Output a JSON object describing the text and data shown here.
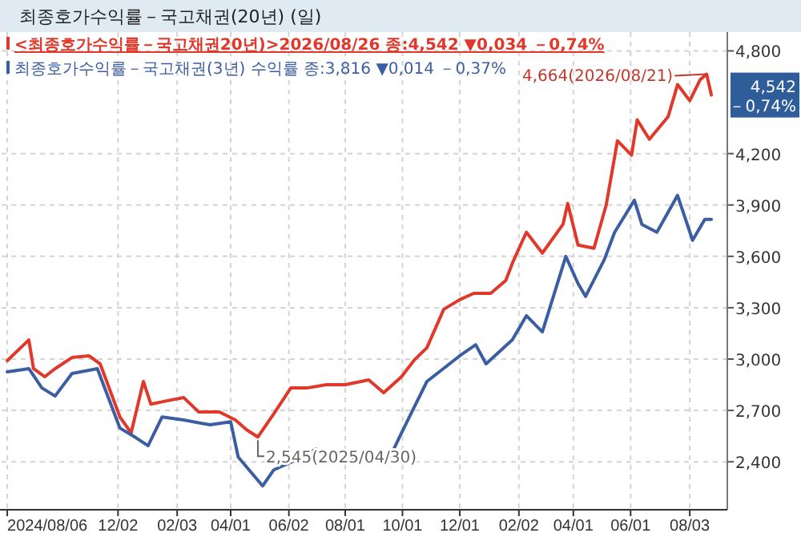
{
  "chart_data": {
    "type": "line",
    "title": "최종호가수익률－국고채권(20년) (일)",
    "xlim": [
      "2024-07-31",
      "2026-09-12"
    ],
    "xticks": [
      {
        "value": "2024-08-06",
        "label": "2024/08/06"
      },
      {
        "value": "2024-12-02",
        "label": "12/02"
      },
      {
        "value": "2025-02-03",
        "label": "02/03"
      },
      {
        "value": "2025-04-01",
        "label": "04/01"
      },
      {
        "value": "2025-06-02",
        "label": "06/02"
      },
      {
        "value": "2025-08-01",
        "label": "08/01"
      },
      {
        "value": "2025-10-01",
        "label": "10/01"
      },
      {
        "value": "2025-12-01",
        "label": "12/01"
      },
      {
        "value": "2026-02-02",
        "label": "02/02"
      },
      {
        "value": "2026-04-01",
        "label": "04/01"
      },
      {
        "value": "2026-06-01",
        "label": "06/01"
      },
      {
        "value": "2026-08-03",
        "label": "08/03"
      }
    ],
    "ylim": [
      2120,
      4910
    ],
    "yticks": [
      {
        "value": 2400,
        "label": "2,400"
      },
      {
        "value": 2700,
        "label": "2,700"
      },
      {
        "value": 3000,
        "label": "3,000"
      },
      {
        "value": 3300,
        "label": "3,300"
      },
      {
        "value": 3600,
        "label": "3,600"
      },
      {
        "value": 3900,
        "label": "3,900"
      },
      {
        "value": 4200,
        "label": "4,200"
      },
      {
        "value": 4800,
        "label": "4,800"
      }
    ],
    "grid": true,
    "legend": "top left",
    "marker": "none",
    "line_style": "solid",
    "series": [
      {
        "name": "<최종호가수익률－국고채권20년)>2026/08/26 종:4,542 ▼0,034 －0,74%",
        "color": "#e0392b",
        "x": [
          "2024-08-06",
          "2024-08-29",
          "2024-09-03",
          "2024-09-15",
          "2024-09-26",
          "2024-10-14",
          "2024-11-01",
          "2024-11-13",
          "2024-12-04",
          "2024-12-16",
          "2024-12-29",
          "2025-01-06",
          "2025-01-23",
          "2025-02-10",
          "2025-02-26",
          "2025-03-20",
          "2025-04-06",
          "2025-04-18",
          "2025-04-30",
          "2025-05-17",
          "2025-06-04",
          "2025-06-21",
          "2025-07-12",
          "2025-08-01",
          "2025-08-26",
          "2025-09-11",
          "2025-09-30",
          "2025-10-13",
          "2025-10-27",
          "2025-11-14",
          "2025-12-01",
          "2025-12-16",
          "2026-01-03",
          "2026-01-19",
          "2026-01-27",
          "2026-02-10",
          "2026-02-27",
          "2026-03-21",
          "2026-03-26",
          "2026-04-06",
          "2026-04-23",
          "2026-05-06",
          "2026-05-18",
          "2026-06-02",
          "2026-06-08",
          "2026-06-21",
          "2026-07-11",
          "2026-07-21",
          "2026-08-03",
          "2026-08-14",
          "2026-08-21",
          "2026-08-26"
        ],
        "values": [
          2991,
          3112,
          2944,
          2897,
          2944,
          3009,
          3019,
          2972,
          2662,
          2569,
          2869,
          2737,
          2756,
          2775,
          2691,
          2691,
          2644,
          2587,
          2545,
          2681,
          2831,
          2831,
          2850,
          2850,
          2878,
          2803,
          2897,
          2991,
          3066,
          3291,
          3347,
          3384,
          3384,
          3459,
          3572,
          3741,
          3619,
          3787,
          3909,
          3666,
          3647,
          3900,
          4275,
          4191,
          4397,
          4284,
          4416,
          4603,
          4509,
          4631,
          4664,
          4542
        ]
      },
      {
        "name": "최종호가수익률－국고채권(3년) 수익률 종:3,816 ▼0,014 －0,37%",
        "color": "#3b5ea3",
        "x": [
          "2024-08-06",
          "2024-08-29",
          "2024-09-12",
          "2024-09-26",
          "2024-10-14",
          "2024-11-10",
          "2024-12-04",
          "2024-12-21",
          "2025-01-03",
          "2025-01-18",
          "2025-02-10",
          "2025-03-10",
          "2025-04-01",
          "2025-04-09",
          "2025-05-05",
          "2025-05-17",
          "2025-06-09",
          "2025-07-01",
          "2025-07-24",
          "2025-08-26",
          "2025-09-16",
          "2025-09-30",
          "2025-10-27",
          "2025-12-01",
          "2025-12-18",
          "2025-12-29",
          "2026-01-26",
          "2026-02-10",
          "2026-02-27",
          "2026-03-24",
          "2026-04-06",
          "2026-04-14",
          "2026-05-04",
          "2026-05-15",
          "2026-06-05",
          "2026-06-13",
          "2026-06-29",
          "2026-07-21",
          "2026-08-06",
          "2026-08-19",
          "2026-08-26"
        ],
        "values": [
          2925,
          2944,
          2831,
          2784,
          2916,
          2944,
          2597,
          2541,
          2494,
          2662,
          2644,
          2616,
          2634,
          2428,
          2259,
          2353,
          2409,
          2475,
          2409,
          2428,
          2409,
          2569,
          2869,
          3019,
          3084,
          2972,
          3112,
          3253,
          3159,
          3600,
          3441,
          3366,
          3581,
          3741,
          3928,
          3787,
          3741,
          3956,
          3694,
          3816,
          3816
        ]
      }
    ],
    "annotations": [
      {
        "text": "4,664(2026/08/21)",
        "x": "2026-08-21",
        "y": 4664
      },
      {
        "text": "2,545(2025/04/30)",
        "x": "2025-04-30",
        "y": 2545
      },
      "4,542",
      "－0,74%"
    ]
  }
}
